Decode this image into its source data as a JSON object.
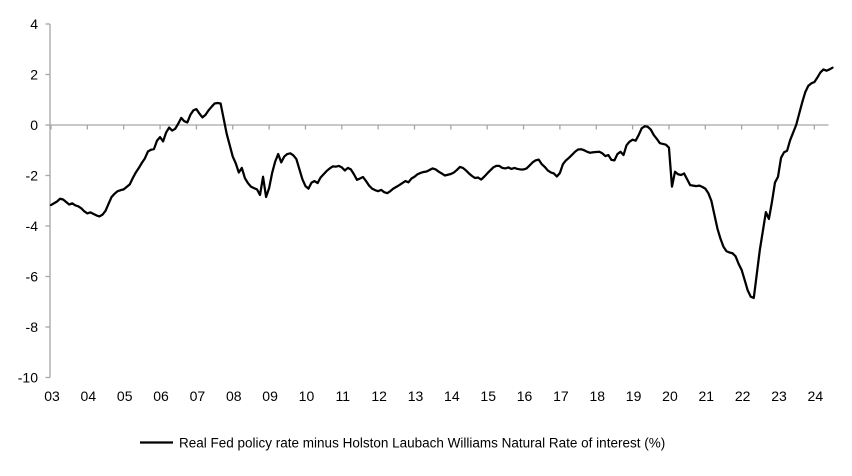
{
  "chart_data": {
    "type": "line",
    "title": "",
    "xlabel": "",
    "ylabel": "",
    "xlim": [
      2003,
      2024.9
    ],
    "ylim": [
      -10,
      4
    ],
    "grid": false,
    "zero_line": true,
    "legend_position": "bottom-center",
    "y_ticks": [
      4,
      2,
      0,
      -2,
      -4,
      -6,
      -8,
      -10
    ],
    "y_tick_labels": [
      "4",
      "2",
      "0",
      "-2",
      "-4",
      "-6",
      "-8",
      "-10"
    ],
    "x_tick_years": [
      2003,
      2004,
      2005,
      2006,
      2007,
      2008,
      2009,
      2010,
      2011,
      2012,
      2013,
      2014,
      2015,
      2016,
      2017,
      2018,
      2019,
      2020,
      2021,
      2022,
      2023,
      2024
    ],
    "x_tick_labels": [
      "03",
      "04",
      "05",
      "06",
      "07",
      "08",
      "09",
      "10",
      "11",
      "12",
      "13",
      "14",
      "15",
      "16",
      "17",
      "18",
      "19",
      "20",
      "21",
      "22",
      "23",
      "24"
    ],
    "series": [
      {
        "name": "Real Fed policy rate minus Holston Laubach Williams Natural Rate of interest (%)",
        "color": "#000000",
        "start_year": 2003.0,
        "step_years": 0.0833333,
        "values": [
          -3.17,
          -3.1,
          -3.03,
          -2.92,
          -2.95,
          -3.05,
          -3.15,
          -3.1,
          -3.18,
          -3.22,
          -3.3,
          -3.42,
          -3.5,
          -3.46,
          -3.52,
          -3.58,
          -3.62,
          -3.55,
          -3.4,
          -3.12,
          -2.85,
          -2.72,
          -2.62,
          -2.58,
          -2.55,
          -2.45,
          -2.35,
          -2.1,
          -1.88,
          -1.7,
          -1.5,
          -1.32,
          -1.05,
          -0.98,
          -0.95,
          -0.62,
          -0.48,
          -0.65,
          -0.3,
          -0.1,
          -0.22,
          -0.15,
          0.05,
          0.28,
          0.15,
          0.1,
          0.4,
          0.58,
          0.63,
          0.45,
          0.3,
          0.4,
          0.58,
          0.72,
          0.85,
          0.87,
          0.85,
          0.25,
          -0.35,
          -0.8,
          -1.25,
          -1.52,
          -1.88,
          -1.7,
          -2.1,
          -2.3,
          -2.44,
          -2.5,
          -2.55,
          -2.77,
          -2.05,
          -2.85,
          -2.5,
          -1.9,
          -1.45,
          -1.15,
          -1.48,
          -1.25,
          -1.15,
          -1.12,
          -1.2,
          -1.35,
          -1.75,
          -2.15,
          -2.42,
          -2.52,
          -2.28,
          -2.22,
          -2.3,
          -2.08,
          -1.95,
          -1.82,
          -1.72,
          -1.64,
          -1.65,
          -1.62,
          -1.68,
          -1.8,
          -1.7,
          -1.76,
          -1.95,
          -2.17,
          -2.12,
          -2.06,
          -2.22,
          -2.4,
          -2.52,
          -2.58,
          -2.62,
          -2.57,
          -2.66,
          -2.7,
          -2.62,
          -2.52,
          -2.45,
          -2.38,
          -2.3,
          -2.22,
          -2.27,
          -2.12,
          -2.05,
          -1.95,
          -1.9,
          -1.86,
          -1.84,
          -1.78,
          -1.72,
          -1.76,
          -1.85,
          -1.92,
          -2.0,
          -1.97,
          -1.94,
          -1.88,
          -1.78,
          -1.66,
          -1.7,
          -1.8,
          -1.92,
          -2.02,
          -2.1,
          -2.08,
          -2.16,
          -2.05,
          -1.92,
          -1.8,
          -1.68,
          -1.62,
          -1.62,
          -1.7,
          -1.72,
          -1.68,
          -1.74,
          -1.7,
          -1.74,
          -1.76,
          -1.76,
          -1.72,
          -1.6,
          -1.48,
          -1.4,
          -1.37,
          -1.55,
          -1.66,
          -1.8,
          -1.88,
          -1.92,
          -2.04,
          -1.9,
          -1.55,
          -1.4,
          -1.3,
          -1.18,
          -1.06,
          -0.97,
          -0.96,
          -1.0,
          -1.06,
          -1.1,
          -1.08,
          -1.07,
          -1.06,
          -1.12,
          -1.23,
          -1.19,
          -1.38,
          -1.4,
          -1.15,
          -1.06,
          -1.19,
          -0.8,
          -0.66,
          -0.58,
          -0.62,
          -0.4,
          -0.13,
          -0.05,
          -0.07,
          -0.18,
          -0.4,
          -0.55,
          -0.72,
          -0.75,
          -0.78,
          -0.9,
          -2.44,
          -1.85,
          -1.95,
          -1.98,
          -1.92,
          -2.15,
          -2.38,
          -2.4,
          -2.42,
          -2.4,
          -2.45,
          -2.52,
          -2.7,
          -3.0,
          -3.55,
          -4.1,
          -4.5,
          -4.82,
          -5.0,
          -5.05,
          -5.08,
          -5.2,
          -5.5,
          -5.74,
          -6.14,
          -6.55,
          -6.8,
          -6.85,
          -5.9,
          -4.95,
          -4.2,
          -3.45,
          -3.72,
          -3.05,
          -2.28,
          -2.05,
          -1.3,
          -1.08,
          -1.02,
          -0.6,
          -0.3,
          0.0,
          0.45,
          0.9,
          1.3,
          1.55,
          1.65,
          1.7,
          1.88,
          2.08,
          2.2,
          2.15,
          2.2,
          2.27
        ]
      }
    ]
  },
  "legend": {
    "label": "Real Fed policy rate minus Holston Laubach Williams Natural Rate of interest (%)"
  },
  "colors": {
    "axis": "#A6A6A6",
    "zero_line": "#A6A6A6",
    "series_line": "#000000",
    "text": "#000000",
    "background": "#FFFFFF"
  }
}
